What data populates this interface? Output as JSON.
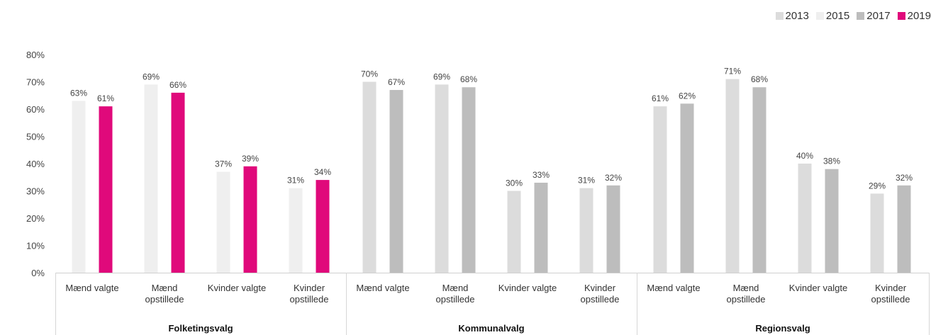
{
  "chart_data": {
    "type": "bar",
    "ylim": [
      0,
      80
    ],
    "yticks": [
      "0%",
      "10%",
      "20%",
      "30%",
      "40%",
      "50%",
      "60%",
      "70%",
      "80%"
    ],
    "legend_position": "top-right",
    "legend": [
      {
        "name": "2013",
        "color": "#dcdcdc"
      },
      {
        "name": "2015",
        "color": "#efefef"
      },
      {
        "name": "2017",
        "color": "#bdbdbd"
      },
      {
        "name": "2019",
        "color": "#e0097b"
      }
    ],
    "groups": [
      {
        "name": "Folketingsvalg",
        "categories": [
          {
            "label": [
              "Mænd valgte"
            ],
            "bars": [
              {
                "series": "2015",
                "value": 63,
                "label": "63%"
              },
              {
                "series": "2019",
                "value": 61,
                "label": "61%"
              }
            ]
          },
          {
            "label": [
              "Mænd",
              "opstillede"
            ],
            "bars": [
              {
                "series": "2015",
                "value": 69,
                "label": "69%"
              },
              {
                "series": "2019",
                "value": 66,
                "label": "66%"
              }
            ]
          },
          {
            "label": [
              "Kvinder valgte"
            ],
            "bars": [
              {
                "series": "2015",
                "value": 37,
                "label": "37%"
              },
              {
                "series": "2019",
                "value": 39,
                "label": "39%"
              }
            ]
          },
          {
            "label": [
              "Kvinder",
              "opstillede"
            ],
            "bars": [
              {
                "series": "2015",
                "value": 31,
                "label": "31%"
              },
              {
                "series": "2019",
                "value": 34,
                "label": "34%"
              }
            ]
          }
        ]
      },
      {
        "name": "Kommunalvalg",
        "categories": [
          {
            "label": [
              "Mænd valgte"
            ],
            "bars": [
              {
                "series": "2013",
                "value": 70,
                "label": "70%"
              },
              {
                "series": "2017",
                "value": 67,
                "label": "67%"
              }
            ]
          },
          {
            "label": [
              "Mænd",
              "opstillede"
            ],
            "bars": [
              {
                "series": "2013",
                "value": 69,
                "label": "69%"
              },
              {
                "series": "2017",
                "value": 68,
                "label": "68%"
              }
            ]
          },
          {
            "label": [
              "Kvinder valgte"
            ],
            "bars": [
              {
                "series": "2013",
                "value": 30,
                "label": "30%"
              },
              {
                "series": "2017",
                "value": 33,
                "label": "33%"
              }
            ]
          },
          {
            "label": [
              "Kvinder",
              "opstillede"
            ],
            "bars": [
              {
                "series": "2013",
                "value": 31,
                "label": "31%"
              },
              {
                "series": "2017",
                "value": 32,
                "label": "32%"
              }
            ]
          }
        ]
      },
      {
        "name": "Regionsvalg",
        "categories": [
          {
            "label": [
              "Mænd valgte"
            ],
            "bars": [
              {
                "series": "2013",
                "value": 61,
                "label": "61%"
              },
              {
                "series": "2017",
                "value": 62,
                "label": "62%"
              }
            ]
          },
          {
            "label": [
              "Mænd",
              "opstillede"
            ],
            "bars": [
              {
                "series": "2013",
                "value": 71,
                "label": "71%"
              },
              {
                "series": "2017",
                "value": 68,
                "label": "68%"
              }
            ]
          },
          {
            "label": [
              "Kvinder valgte"
            ],
            "bars": [
              {
                "series": "2013",
                "value": 40,
                "label": "40%"
              },
              {
                "series": "2017",
                "value": 38,
                "label": "38%"
              }
            ]
          },
          {
            "label": [
              "Kvinder",
              "opstillede"
            ],
            "bars": [
              {
                "series": "2013",
                "value": 29,
                "label": "29%"
              },
              {
                "series": "2017",
                "value": 32,
                "label": "32%"
              }
            ]
          }
        ]
      }
    ]
  }
}
